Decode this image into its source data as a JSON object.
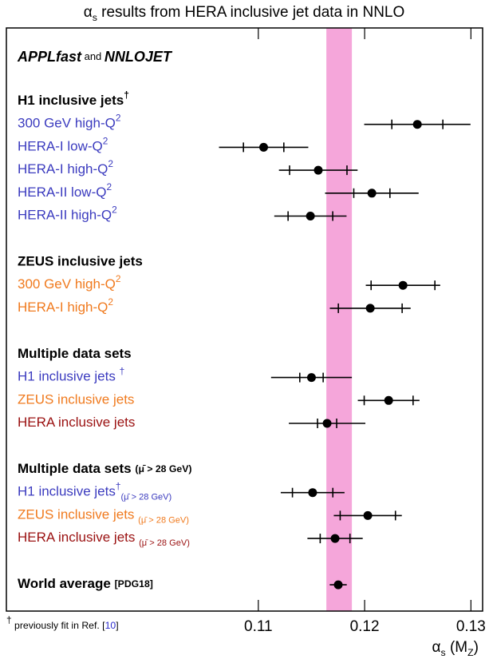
{
  "chart_data": {
    "type": "forest",
    "title": [
      {
        "t": "α"
      },
      {
        "t": "s",
        "sub": true
      },
      {
        "t": " results from HERA inclusive jet data in NNLO"
      }
    ],
    "header": [
      {
        "t": "APPLfast",
        "bi": true
      },
      {
        "t": " and ",
        "small": true
      },
      {
        "t": "NNLOJET",
        "bi": true
      }
    ],
    "xlabel": [
      {
        "t": "α"
      },
      {
        "t": "s",
        "sub": true
      },
      {
        "t": " (M"
      },
      {
        "t": "Z",
        "sub": true
      },
      {
        "t": ")"
      }
    ],
    "footnote": [
      {
        "t": "†",
        "sup": true
      },
      {
        "t": " previously fit in Ref. [",
        "small": true
      },
      {
        "t": "10",
        "small": true,
        "color": "#2a2acc"
      },
      {
        "t": "]",
        "small": true
      }
    ],
    "xlim": [
      0.0863,
      0.1311
    ],
    "xticks": [
      0.11,
      0.12,
      0.13
    ],
    "band": [
      0.1164,
      0.1188
    ],
    "band_color": "#f5a6da",
    "sections": [
      {
        "heading": [
          {
            "t": "H1 inclusive jets"
          },
          {
            "t": "†",
            "sup": true
          }
        ],
        "rows": [
          {
            "label": [
              {
                "t": "300 GeV high-Q"
              },
              {
                "t": "2",
                "sup": true
              }
            ],
            "color": "#3b3bbf",
            "value": 0.12496,
            "inner": 0.0024,
            "outer": 0.005
          },
          {
            "label": [
              {
                "t": "HERA-I low-Q"
              },
              {
                "t": "2",
                "sup": true
              }
            ],
            "color": "#3b3bbf",
            "value": 0.1105,
            "inner": 0.0019,
            "outer": 0.0042
          },
          {
            "label": [
              {
                "t": "HERA-I high-Q"
              },
              {
                "t": "2",
                "sup": true
              }
            ],
            "color": "#3b3bbf",
            "value": 0.11564,
            "inner": 0.0027,
            "outer": 0.0037
          },
          {
            "label": [
              {
                "t": "HERA-II low-Q"
              },
              {
                "t": "2",
                "sup": true
              }
            ],
            "color": "#3b3bbf",
            "value": 0.12068,
            "inner": 0.0017,
            "outer": 0.0044
          },
          {
            "label": [
              {
                "t": "HERA-II high-Q"
              },
              {
                "t": "2",
                "sup": true
              }
            ],
            "color": "#3b3bbf",
            "value": 0.1149,
            "inner": 0.0021,
            "outer": 0.0034
          }
        ]
      },
      {
        "heading": [
          {
            "t": "ZEUS inclusive jets"
          }
        ],
        "rows": [
          {
            "label": [
              {
                "t": "300 GeV high-Q"
              },
              {
                "t": "2",
                "sup": true
              }
            ],
            "color": "#f07a1e",
            "value": 0.12361,
            "inner": 0.003,
            "outer": 0.0035
          },
          {
            "label": [
              {
                "t": "HERA-I high-Q"
              },
              {
                "t": "2",
                "sup": true
              }
            ],
            "color": "#f07a1e",
            "value": 0.12053,
            "inner": 0.003,
            "outer": 0.0038
          }
        ]
      },
      {
        "heading": [
          {
            "t": "Multiple data sets"
          }
        ],
        "rows": [
          {
            "label": [
              {
                "t": "H1 inclusive jets "
              },
              {
                "t": "†",
                "sup": true
              }
            ],
            "color": "#3b3bbf",
            "value": 0.115,
            "inner": 0.0011,
            "outer": 0.0038
          },
          {
            "label": [
              {
                "t": "ZEUS inclusive jets"
              }
            ],
            "color": "#f07a1e",
            "value": 0.12226,
            "inner": 0.0023,
            "outer": 0.0029
          },
          {
            "label": [
              {
                "t": "HERA inclusive jets"
              }
            ],
            "color": "#9a1010",
            "value": 0.11647,
            "inner": 0.0009,
            "outer": 0.0036
          }
        ]
      },
      {
        "heading": [
          {
            "t": "Multiple data sets  "
          },
          {
            "t": "(μ̄ > 28 GeV)",
            "small": true
          }
        ],
        "rows": [
          {
            "label": [
              {
                "t": "H1 inclusive jets"
              },
              {
                "t": "†",
                "sup": true
              },
              {
                "t": "(μ̄ > 28 GeV)",
                "sub": true
              }
            ],
            "color": "#3b3bbf",
            "value": 0.11511,
            "inner": 0.0019,
            "outer": 0.003
          },
          {
            "label": [
              {
                "t": "ZEUS inclusive jets "
              },
              {
                "t": "(μ̄ > 28 GeV)",
                "sub": true
              }
            ],
            "color": "#f07a1e",
            "value": 0.1203,
            "inner": 0.0026,
            "outer": 0.0032
          },
          {
            "label": [
              {
                "t": "HERA inclusive jets "
              },
              {
                "t": "(μ̄ > 28 GeV)",
                "sub": true
              }
            ],
            "color": "#9a1010",
            "value": 0.11722,
            "inner": 0.0014,
            "outer": 0.0026
          }
        ]
      },
      {
        "heading": [
          {
            "t": "World average "
          },
          {
            "t": "[PDG18]",
            "small": true
          }
        ],
        "value": 0.11752,
        "outer": 0.0008
      }
    ]
  }
}
